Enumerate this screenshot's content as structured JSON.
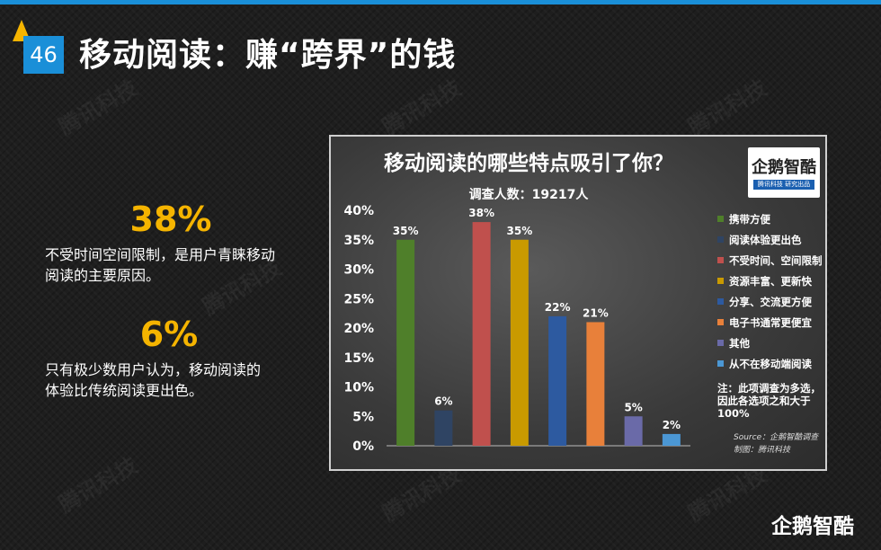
{
  "header": {
    "page_number": "46",
    "title": "移动阅读：赚“跨界”的钱"
  },
  "watermark_text": "腾讯科技",
  "stats": [
    {
      "value": "38%",
      "description_lines": [
        "不受时间空间限制，是用户青睐移动",
        "阅读的主要原因。"
      ]
    },
    {
      "value": "6%",
      "description_lines": [
        "只有极少数用户认为，移动阅读的",
        "体验比传统阅读更出色。"
      ]
    }
  ],
  "chart_logo": {
    "text": "企鹅智酷",
    "sub": "腾讯科技 研究出品"
  },
  "chart_data": {
    "type": "bar",
    "title": "移动阅读的哪些特点吸引了你？",
    "subtitle": "调查人数：19217人",
    "categories": [
      "携带方便",
      "阅读体验更出色",
      "不受时间、空间限制",
      "资源丰富、更新快",
      "分享、交流更方便",
      "电子书通常更便宜",
      "其他",
      "从不在移动端阅读"
    ],
    "values": [
      35,
      6,
      38,
      35,
      22,
      21,
      5,
      2
    ],
    "value_labels": [
      "35%",
      "6%",
      "38%",
      "35%",
      "22%",
      "21%",
      "5%",
      "2%"
    ],
    "colors": [
      "#4f7f2a",
      "#2f4463",
      "#c0504d",
      "#c99a00",
      "#2d5aa0",
      "#e8803a",
      "#6a6aa8",
      "#4b97d4"
    ],
    "ylim": [
      0,
      40
    ],
    "y_ticks": [
      0,
      5,
      10,
      15,
      20,
      25,
      30,
      35,
      40
    ],
    "y_tick_labels": [
      "0%",
      "5%",
      "10%",
      "15%",
      "20%",
      "25%",
      "30%",
      "35%",
      "40%"
    ],
    "legend_position": "right",
    "grid": false
  },
  "chart_note": "注：此项调查为多选，因此各选项之和大于100%",
  "chart_source_lines": [
    "Source：企鹅智酷调查",
    "制图：腾讯科技"
  ],
  "brand_logo": "企鹅智酷"
}
